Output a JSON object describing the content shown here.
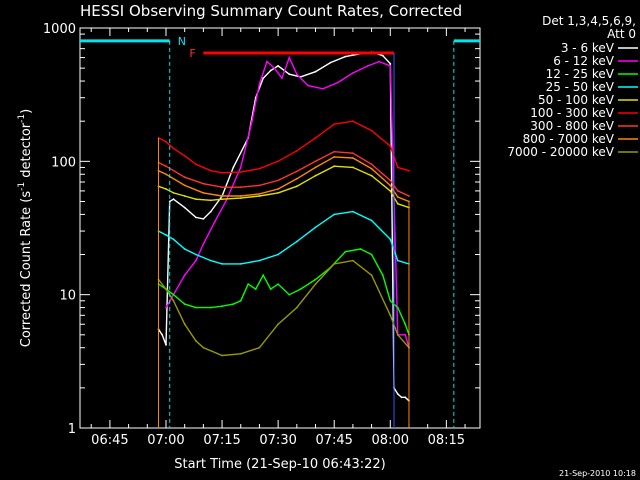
{
  "chart_data": {
    "type": "line",
    "title": "HESSI Observing Summary Count Rates, Corrected",
    "xlabel": "Start Time (21-Sep-10 06:43:22)",
    "ylabel_main": "Corrected Count Rate (s",
    "ylabel_sup1": "-1",
    "ylabel_mid": " detector",
    "ylabel_sup2": "-1",
    "ylabel_end": ")",
    "yscale": "log",
    "xlim": [
      "06:37",
      "08:24"
    ],
    "ylim": [
      1,
      1000
    ],
    "xticks": [
      "06:45",
      "07:00",
      "07:15",
      "07:30",
      "07:45",
      "08:00",
      "08:15"
    ],
    "yticks": [
      {
        "value": 1,
        "label": "1"
      },
      {
        "value": 10,
        "label": "10"
      },
      {
        "value": 100,
        "label": "100"
      },
      {
        "value": 1000,
        "label": "1000"
      }
    ],
    "legend_title": [
      "Det 1,3,4,5,6,9,",
      "Att 0"
    ],
    "legend_position": "right",
    "timestamp": "21-Sep-2010 10:18",
    "series": [
      {
        "name": "3 - 6 keV",
        "color": "#ffffff",
        "x": [
          "06:58",
          "06:59",
          "07:00",
          "07:01",
          "07:02",
          "07:05",
          "07:08",
          "07:10",
          "07:12",
          "07:15",
          "07:18",
          "07:22",
          "07:24",
          "07:26",
          "07:28",
          "07:30",
          "07:33",
          "07:36",
          "07:40",
          "07:44",
          "07:48",
          "07:52",
          "07:55",
          "07:58",
          "08:00",
          "08:01",
          "08:02",
          "08:03",
          "08:04",
          "08:05"
        ],
        "values": [
          5.5,
          5.0,
          4.2,
          50,
          52,
          45,
          38,
          37,
          42,
          55,
          90,
          150,
          300,
          420,
          480,
          520,
          450,
          430,
          470,
          550,
          610,
          640,
          660,
          620,
          540,
          2,
          1.8,
          1.7,
          1.7,
          1.6
        ]
      },
      {
        "name": "6 - 12 keV",
        "color": "#ff00ff",
        "x": [
          "07:00",
          "07:02",
          "07:05",
          "07:08",
          "07:10",
          "07:13",
          "07:16",
          "07:20",
          "07:23",
          "07:25",
          "07:27",
          "07:29",
          "07:31",
          "07:33",
          "07:35",
          "07:38",
          "07:42",
          "07:46",
          "07:50",
          "07:54",
          "07:57",
          "08:00",
          "08:02",
          "08:04",
          "08:05"
        ],
        "values": [
          8,
          10,
          14,
          18,
          24,
          35,
          50,
          90,
          200,
          380,
          560,
          500,
          420,
          600,
          450,
          370,
          350,
          390,
          460,
          520,
          560,
          520,
          5,
          5,
          4
        ]
      },
      {
        "name": "12 - 25 keV",
        "color": "#00ff00",
        "x": [
          "06:58",
          "07:00",
          "07:02",
          "07:05",
          "07:08",
          "07:12",
          "07:15",
          "07:18",
          "07:20",
          "07:22",
          "07:24",
          "07:26",
          "07:28",
          "07:30",
          "07:33",
          "07:36",
          "07:40",
          "07:44",
          "07:48",
          "07:52",
          "07:55",
          "07:58",
          "08:00",
          "08:02",
          "08:04",
          "08:05"
        ],
        "values": [
          12,
          11,
          10,
          8.5,
          8,
          8,
          8.2,
          8.5,
          9,
          12,
          11,
          14,
          11,
          12,
          10,
          11,
          13,
          16,
          21,
          22,
          20,
          14,
          9,
          8,
          6,
          5
        ]
      },
      {
        "name": "25 - 50 keV",
        "color": "#00ffff",
        "x": [
          "06:58",
          "07:00",
          "07:02",
          "07:05",
          "07:08",
          "07:12",
          "07:15",
          "07:20",
          "07:25",
          "07:30",
          "07:35",
          "07:40",
          "07:45",
          "07:50",
          "07:55",
          "08:00",
          "08:02",
          "08:05"
        ],
        "values": [
          30,
          28,
          26,
          22,
          20,
          18,
          17,
          17,
          18,
          20,
          25,
          32,
          40,
          42,
          36,
          26,
          18,
          17
        ]
      },
      {
        "name": "50 - 100 keV",
        "color": "#e0e000",
        "x": [
          "06:58",
          "07:00",
          "07:02",
          "07:05",
          "07:08",
          "07:12",
          "07:15",
          "07:20",
          "07:25",
          "07:30",
          "07:35",
          "07:40",
          "07:45",
          "07:50",
          "07:55",
          "08:00",
          "08:02",
          "08:05"
        ],
        "values": [
          65,
          62,
          58,
          55,
          52,
          51,
          52,
          53,
          55,
          58,
          65,
          78,
          92,
          90,
          78,
          60,
          48,
          45
        ]
      },
      {
        "name": "100 - 300 keV",
        "color": "#ff0000",
        "x": [
          "06:58",
          "07:00",
          "07:02",
          "07:05",
          "07:08",
          "07:12",
          "07:15",
          "07:20",
          "07:25",
          "07:30",
          "07:35",
          "07:40",
          "07:45",
          "07:50",
          "07:55",
          "08:00",
          "08:02",
          "08:05"
        ],
        "values": [
          150,
          140,
          125,
          110,
          95,
          85,
          82,
          83,
          88,
          100,
          120,
          150,
          190,
          200,
          170,
          130,
          90,
          85
        ]
      },
      {
        "name": "300 - 800 keV",
        "color": "#ff3333",
        "x": [
          "06:58",
          "07:00",
          "07:05",
          "07:10",
          "07:15",
          "07:20",
          "07:25",
          "07:30",
          "07:35",
          "07:40",
          "07:45",
          "07:50",
          "07:55",
          "08:00",
          "08:02",
          "08:05"
        ],
        "values": [
          98,
          92,
          76,
          68,
          64,
          64,
          66,
          72,
          84,
          100,
          118,
          115,
          95,
          72,
          60,
          55
        ]
      },
      {
        "name": "800 - 7000 keV",
        "color": "#ff8800",
        "x": [
          "06:58",
          "07:00",
          "07:05",
          "07:10",
          "07:15",
          "07:20",
          "07:25",
          "07:30",
          "07:35",
          "07:40",
          "07:45",
          "07:50",
          "07:55",
          "08:00",
          "08:02",
          "08:05"
        ],
        "values": [
          85,
          80,
          66,
          58,
          55,
          55,
          57,
          62,
          74,
          90,
          108,
          106,
          88,
          66,
          54,
          50
        ]
      },
      {
        "name": "7000 - 20000 keV",
        "color": "#999900",
        "x": [
          "06:58",
          "07:00",
          "07:02",
          "07:05",
          "07:08",
          "07:10",
          "07:15",
          "07:20",
          "07:25",
          "07:30",
          "07:35",
          "07:40",
          "07:45",
          "07:50",
          "07:55",
          "08:00",
          "08:02",
          "08:05"
        ],
        "values": [
          13,
          11,
          9,
          6,
          4.5,
          4,
          3.5,
          3.6,
          4,
          6,
          8,
          12,
          17,
          18,
          14,
          7,
          5,
          4
        ]
      }
    ],
    "annotations": {
      "night_label": "N",
      "flare_label": "F",
      "flare_start": "07:10",
      "flare_end": "08:01",
      "flare_level": 650,
      "night_start": "07:01",
      "night_end": "08:17",
      "night_level": 800
    }
  }
}
